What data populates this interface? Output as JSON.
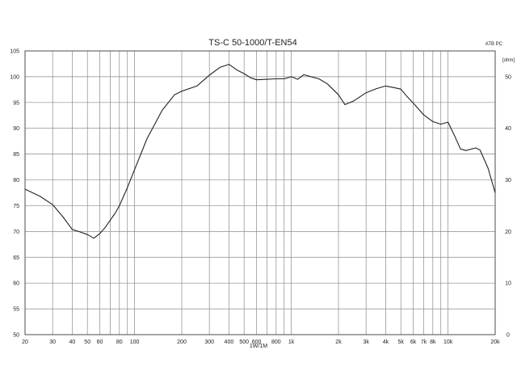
{
  "chart_data": {
    "type": "line",
    "title": "TS-C 50-1000/T-EN54",
    "corner_label": "ATB PC",
    "xlabel": "1W/1M",
    "ylabel_right": "[ohm]",
    "x_scale": "log",
    "xlim": [
      20,
      20000
    ],
    "ylim": [
      50,
      105
    ],
    "ylim_right": [
      0,
      55
    ],
    "grid": true,
    "y_ticks": [
      50,
      55,
      60,
      65,
      70,
      75,
      80,
      85,
      90,
      95,
      100,
      105
    ],
    "y_ticks_right": [
      0,
      10,
      20,
      30,
      40,
      50
    ],
    "x_ticks": [
      {
        "value": 20,
        "label": "20"
      },
      {
        "value": 30,
        "label": "30"
      },
      {
        "value": 40,
        "label": "40"
      },
      {
        "value": 50,
        "label": "50"
      },
      {
        "value": 60,
        "label": "60"
      },
      {
        "value": 80,
        "label": "80"
      },
      {
        "value": 100,
        "label": "100"
      },
      {
        "value": 200,
        "label": "200"
      },
      {
        "value": 300,
        "label": "300"
      },
      {
        "value": 400,
        "label": "400"
      },
      {
        "value": 500,
        "label": "500"
      },
      {
        "value": 600,
        "label": "600"
      },
      {
        "value": 800,
        "label": "800"
      },
      {
        "value": 1000,
        "label": "1k"
      },
      {
        "value": 2000,
        "label": "2k"
      },
      {
        "value": 3000,
        "label": "3k"
      },
      {
        "value": 4000,
        "label": "4k"
      },
      {
        "value": 5000,
        "label": "5k"
      },
      {
        "value": 6000,
        "label": "6k"
      },
      {
        "value": 7000,
        "label": "7k"
      },
      {
        "value": 8000,
        "label": "8k"
      },
      {
        "value": 10000,
        "label": "10k"
      },
      {
        "value": 20000,
        "label": "20k"
      }
    ],
    "series": [
      {
        "color": "#222222",
        "x": [
          20,
          25,
          30,
          35,
          40,
          45,
          50,
          55,
          60,
          65,
          70,
          75,
          80,
          90,
          100,
          120,
          150,
          180,
          200,
          250,
          300,
          350,
          400,
          450,
          500,
          550,
          600,
          700,
          800,
          900,
          1000,
          1100,
          1200,
          1300,
          1500,
          1700,
          2000,
          2200,
          2500,
          3000,
          3500,
          4000,
          4500,
          5000,
          5500,
          6000,
          7000,
          8000,
          9000,
          10000,
          11000,
          12000,
          13000,
          15000,
          16000,
          17000,
          18000,
          20000
        ],
        "values": [
          78.2,
          76.8,
          75.2,
          72.8,
          70.4,
          69.9,
          69.4,
          68.7,
          69.6,
          70.8,
          72.2,
          73.5,
          75.0,
          78.5,
          82.0,
          88.0,
          93.5,
          96.5,
          97.2,
          98.2,
          100.3,
          101.8,
          102.4,
          101.3,
          100.6,
          99.8,
          99.4,
          99.5,
          99.6,
          99.6,
          100.0,
          99.5,
          100.4,
          100.1,
          99.6,
          98.6,
          96.5,
          94.6,
          95.3,
          96.9,
          97.7,
          98.2,
          97.9,
          97.6,
          96.1,
          94.9,
          92.6,
          91.3,
          90.8,
          91.2,
          88.6,
          86.0,
          85.7,
          86.2,
          85.8,
          84.0,
          82.3,
          77.5
        ]
      }
    ]
  }
}
